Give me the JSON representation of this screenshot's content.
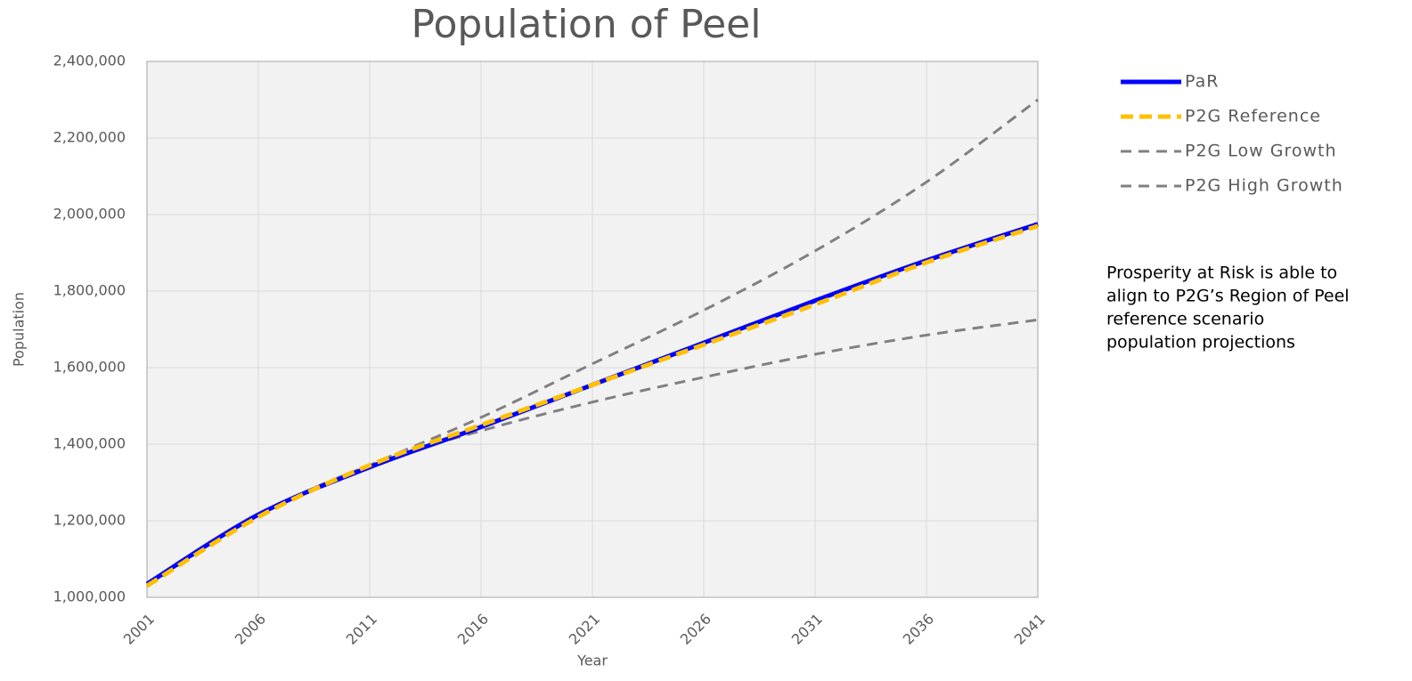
{
  "chart_data": {
    "type": "line",
    "title": "Population of Peel",
    "x_label": "Year",
    "y_label": "Population",
    "x": [
      2001,
      2006,
      2011,
      2016,
      2021,
      2026,
      2031,
      2036,
      2041
    ],
    "series": [
      {
        "name": "PaR",
        "color": "#0000ff",
        "line_style": "solid",
        "values": [
          1035000,
          1216000,
          1340000,
          1445000,
          1555000,
          1665000,
          1775000,
          1880000,
          1975000
        ]
      },
      {
        "name": "P2G Reference",
        "color": "#ffc000",
        "line_style": "dashed",
        "values": [
          1030000,
          1210000,
          1345000,
          1450000,
          1555000,
          1660000,
          1765000,
          1875000,
          1970000
        ]
      },
      {
        "name": "P2G Low Growth",
        "color": "#808080",
        "line_style": "dashed",
        "values": [
          1030000,
          1215000,
          1345000,
          1435000,
          1510000,
          1575000,
          1635000,
          1685000,
          1725000
        ]
      },
      {
        "name": "P2G High Growth",
        "color": "#808080",
        "line_style": "dashed",
        "values": [
          1030000,
          1215000,
          1345000,
          1470000,
          1610000,
          1750000,
          1905000,
          2085000,
          2300000
        ]
      }
    ],
    "xlim": [
      2001,
      2041
    ],
    "xticks": [
      2001,
      2006,
      2011,
      2016,
      2021,
      2026,
      2031,
      2036,
      2041
    ],
    "ylim": [
      1000000,
      2400000
    ],
    "yticks": [
      {
        "value": 1000000,
        "label": "1,000,000"
      },
      {
        "value": 1200000,
        "label": "1,200,000"
      },
      {
        "value": 1400000,
        "label": "1,400,000"
      },
      {
        "value": 1600000,
        "label": "1,600,000"
      },
      {
        "value": 1800000,
        "label": "1,800,000"
      },
      {
        "value": 2000000,
        "label": "2,000,000"
      },
      {
        "value": 2200000,
        "label": "2,200,000"
      },
      {
        "value": 2400000,
        "label": "2,400,000"
      }
    ],
    "grid": true,
    "legend": "right",
    "annotation": [
      "Prosperity at Risk is able to",
      "align to P2G’s Region of Peel",
      "reference scenario",
      "population projections"
    ]
  }
}
